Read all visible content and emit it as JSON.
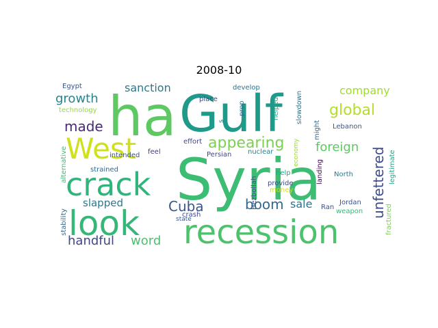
{
  "title": "2008-10",
  "words": [
    {
      "text": "Syria",
      "color": "#3dbc74",
      "weight": 1.0
    },
    {
      "text": "Gulf",
      "color": "#1f9a8a",
      "weight": 0.9
    },
    {
      "text": "ha",
      "color": "#5ec962",
      "weight": 0.88
    },
    {
      "text": "recession",
      "color": "#4cc26c",
      "weight": 0.6
    },
    {
      "text": "look",
      "color": "#35b779",
      "weight": 0.58
    },
    {
      "text": "crack",
      "color": "#2fb47c",
      "weight": 0.55
    },
    {
      "text": "West",
      "color": "#d0e11c",
      "weight": 0.52
    },
    {
      "text": "unfettered",
      "color": "#3e4a89",
      "weight": 0.36
    },
    {
      "text": "appearing",
      "color": "#7ad151",
      "weight": 0.33
    },
    {
      "text": "global",
      "color": "#b5de2b",
      "weight": 0.32
    },
    {
      "text": "boom",
      "color": "#31688e",
      "weight": 0.31
    },
    {
      "text": "Cuba",
      "color": "#39568c",
      "weight": 0.3
    },
    {
      "text": "growth",
      "color": "#25848e",
      "weight": 0.3
    },
    {
      "text": "made",
      "color": "#482878",
      "weight": 0.3
    },
    {
      "text": "foreign",
      "color": "#5ec962",
      "weight": 0.29
    },
    {
      "text": "word",
      "color": "#4ac16d",
      "weight": 0.28
    },
    {
      "text": "handful",
      "color": "#404688",
      "weight": 0.27
    },
    {
      "text": "sanction",
      "color": "#2a788e",
      "weight": 0.27
    },
    {
      "text": "company",
      "color": "#a0da39",
      "weight": 0.26
    },
    {
      "text": "sale",
      "color": "#2c728e",
      "weight": 0.25
    },
    {
      "text": "slapped",
      "color": "#2a788e",
      "weight": 0.23
    },
    {
      "text": "Egypt",
      "color": "#3b528b",
      "weight": 0.15
    },
    {
      "text": "technology",
      "color": "#95d840",
      "weight": 0.14
    },
    {
      "text": "intended",
      "color": "#3b528b",
      "weight": 0.14
    },
    {
      "text": "strained",
      "color": "#31688e",
      "weight": 0.14
    },
    {
      "text": "alternative",
      "color": "#3dbc74",
      "weight": 0.14
    },
    {
      "text": "stability",
      "color": "#31688e",
      "weight": 0.14
    },
    {
      "text": "develop",
      "color": "#2d708e",
      "weight": 0.15
    },
    {
      "text": "place",
      "color": "#3e4989",
      "weight": 0.14
    },
    {
      "text": "prop",
      "color": "#2c728e",
      "weight": 0.14
    },
    {
      "text": "s",
      "color": "#277f8e",
      "weight": 0.14
    },
    {
      "text": "helped",
      "color": "#20a486",
      "weight": 0.14
    },
    {
      "text": "slowdown",
      "color": "#2c728e",
      "weight": 0.15
    },
    {
      "text": "might",
      "color": "#31688e",
      "weight": 0.14
    },
    {
      "text": "effort",
      "color": "#3f4788",
      "weight": 0.14
    },
    {
      "text": "feel",
      "color": "#46337e",
      "weight": 0.14
    },
    {
      "text": "Persian",
      "color": "#404688",
      "weight": 0.15
    },
    {
      "text": "nuclear",
      "color": "#26828e",
      "weight": 0.14
    },
    {
      "text": "Hezbollah",
      "color": "#3b528b",
      "weight": 0.14
    },
    {
      "text": "economy",
      "color": "#9dd93b",
      "weight": 0.13
    },
    {
      "text": "money",
      "color": "#d0e11c",
      "weight": 0.13
    },
    {
      "text": "help",
      "color": "#20a386",
      "weight": 0.14
    },
    {
      "text": "provide",
      "color": "#3e4a89",
      "weight": 0.14
    },
    {
      "text": "landing",
      "color": "#440154",
      "weight": 0.14
    },
    {
      "text": "Lebanon",
      "color": "#3b528b",
      "weight": 0.14
    },
    {
      "text": "North",
      "color": "#2a788e",
      "weight": 0.14
    },
    {
      "text": "legitimate",
      "color": "#22a785",
      "weight": 0.14
    },
    {
      "text": "Jordan",
      "color": "#3b528b",
      "weight": 0.14
    },
    {
      "text": "weapon",
      "color": "#35b779",
      "weight": 0.14
    },
    {
      "text": "fractured",
      "color": "#7ad151",
      "weight": 0.14
    },
    {
      "text": "Ran",
      "color": "#3b528b",
      "weight": 0.14
    },
    {
      "text": "state",
      "color": "#38598c",
      "weight": 0.13
    },
    {
      "text": "crash",
      "color": "#3f4788",
      "weight": 0.14
    }
  ]
}
